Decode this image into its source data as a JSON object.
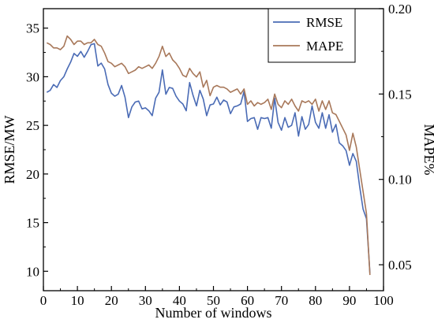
{
  "chart_data": {
    "type": "line",
    "title": "",
    "xlabel": "Number of windows",
    "ylabel_left": "RMSE/MW",
    "ylabel_right": "MAPE%",
    "xlim": [
      0,
      100
    ],
    "ylim_left": [
      8,
      37
    ],
    "ylim_right": [
      0.0348,
      0.2
    ],
    "x_ticks": [
      0,
      10,
      20,
      30,
      40,
      50,
      60,
      70,
      80,
      90,
      100
    ],
    "y_left_ticks": [
      10,
      15,
      20,
      25,
      30,
      35
    ],
    "y_right_ticks": [
      0.05,
      0.1,
      0.15,
      0.2
    ],
    "y_right_tick_labels": [
      "0.05",
      "0.10",
      "0.15",
      "0.20"
    ],
    "legend_position": "top-right",
    "grid": false,
    "series": [
      {
        "name": "RMSE",
        "axis": "left",
        "color": "#4a6bb5",
        "x": [
          1,
          2,
          3,
          4,
          5,
          6,
          7,
          8,
          9,
          10,
          11,
          12,
          13,
          14,
          15,
          16,
          17,
          18,
          19,
          20,
          21,
          22,
          23,
          24,
          25,
          26,
          27,
          28,
          29,
          30,
          31,
          32,
          33,
          34,
          35,
          36,
          37,
          38,
          39,
          40,
          41,
          42,
          43,
          44,
          45,
          46,
          47,
          48,
          49,
          50,
          51,
          52,
          53,
          54,
          55,
          56,
          57,
          58,
          59,
          60,
          61,
          62,
          63,
          64,
          65,
          66,
          67,
          68,
          69,
          70,
          71,
          72,
          73,
          74,
          75,
          76,
          77,
          78,
          79,
          80,
          81,
          82,
          83,
          84,
          85,
          86,
          87,
          88,
          89,
          90,
          91,
          92,
          93,
          94,
          95,
          96
        ],
        "values": [
          28.4,
          28.6,
          29.2,
          28.9,
          29.6,
          30.0,
          30.8,
          31.5,
          32.4,
          32.1,
          32.6,
          32.0,
          32.6,
          33.3,
          33.4,
          31.1,
          31.4,
          30.8,
          29.2,
          28.3,
          28.0,
          28.2,
          29.1,
          27.9,
          25.8,
          26.9,
          27.4,
          27.5,
          26.7,
          26.8,
          26.5,
          26.0,
          27.8,
          28.4,
          30.7,
          28.2,
          28.9,
          28.8,
          28.0,
          27.5,
          27.2,
          26.5,
          29.4,
          28.1,
          27.0,
          28.6,
          27.7,
          26.0,
          27.1,
          27.2,
          27.9,
          27.1,
          27.6,
          27.4,
          26.2,
          26.9,
          27.0,
          27.2,
          28.5,
          25.4,
          25.7,
          25.8,
          24.6,
          25.8,
          25.7,
          25.8,
          24.7,
          27.8,
          25.3,
          24.5,
          25.8,
          24.8,
          25.0,
          26.3,
          23.9,
          25.9,
          24.6,
          25.1,
          27.0,
          25.3,
          24.7,
          26.3,
          24.7,
          26.1,
          24.3,
          25.1,
          23.2,
          22.9,
          22.4,
          20.9,
          22.1,
          21.3,
          18.7,
          16.4,
          15.4,
          9.8
        ]
      },
      {
        "name": "MAPE",
        "axis": "right",
        "color": "#a8785a",
        "x": [
          1,
          2,
          3,
          4,
          5,
          6,
          7,
          8,
          9,
          10,
          11,
          12,
          13,
          14,
          15,
          16,
          17,
          18,
          19,
          20,
          21,
          22,
          23,
          24,
          25,
          26,
          27,
          28,
          29,
          30,
          31,
          32,
          33,
          34,
          35,
          36,
          37,
          38,
          39,
          40,
          41,
          42,
          43,
          44,
          45,
          46,
          47,
          48,
          49,
          50,
          51,
          52,
          53,
          54,
          55,
          56,
          57,
          58,
          59,
          60,
          61,
          62,
          63,
          64,
          65,
          66,
          67,
          68,
          69,
          70,
          71,
          72,
          73,
          74,
          75,
          76,
          77,
          78,
          79,
          80,
          81,
          82,
          83,
          84,
          85,
          86,
          87,
          88,
          89,
          90,
          91,
          92,
          93,
          94,
          95,
          96
        ],
        "values": [
          0.18,
          0.179,
          0.177,
          0.177,
          0.176,
          0.178,
          0.184,
          0.182,
          0.179,
          0.181,
          0.181,
          0.179,
          0.18,
          0.18,
          0.182,
          0.179,
          0.178,
          0.174,
          0.169,
          0.168,
          0.166,
          0.167,
          0.168,
          0.166,
          0.162,
          0.163,
          0.164,
          0.166,
          0.165,
          0.166,
          0.167,
          0.165,
          0.168,
          0.172,
          0.178,
          0.172,
          0.174,
          0.17,
          0.168,
          0.165,
          0.161,
          0.16,
          0.165,
          0.162,
          0.16,
          0.163,
          0.154,
          0.158,
          0.149,
          0.154,
          0.155,
          0.154,
          0.154,
          0.153,
          0.151,
          0.152,
          0.153,
          0.15,
          0.153,
          0.144,
          0.146,
          0.143,
          0.145,
          0.144,
          0.145,
          0.147,
          0.141,
          0.15,
          0.144,
          0.142,
          0.146,
          0.144,
          0.147,
          0.143,
          0.14,
          0.146,
          0.145,
          0.146,
          0.144,
          0.147,
          0.14,
          0.146,
          0.141,
          0.146,
          0.139,
          0.138,
          0.134,
          0.13,
          0.126,
          0.117,
          0.127,
          0.119,
          0.106,
          0.093,
          0.08,
          0.044
        ]
      }
    ]
  }
}
